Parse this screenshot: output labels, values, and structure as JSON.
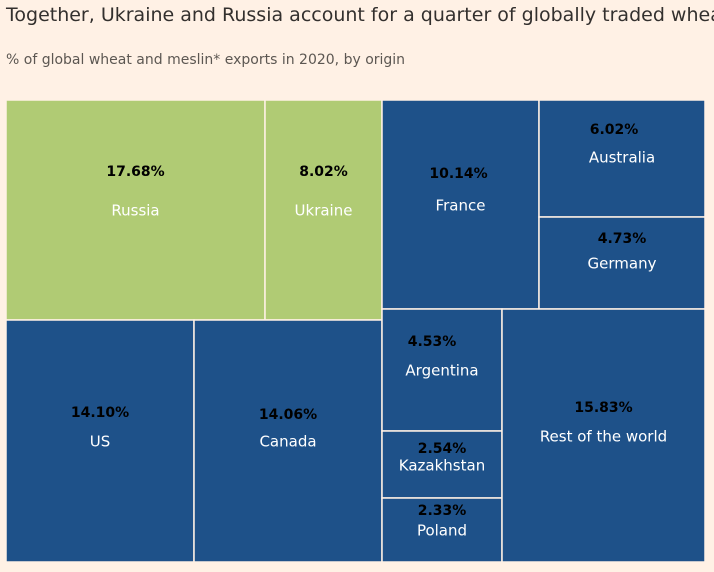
{
  "title": "Together, Ukraine and Russia account for a quarter of globally traded wheat",
  "subtitle": "% of global wheat and meslin* exports in 2020, by origin",
  "colors": {
    "highlight": "#b0cb74",
    "other": "#1e5189",
    "background": "#fff1e5"
  },
  "chart_data": {
    "type": "treemap",
    "title": "Together, Ukraine and Russia account for a quarter of globally traded wheat",
    "subtitle": "% of global wheat and meslin* exports in 2020, by origin",
    "unit": "%",
    "items": [
      {
        "name": "Russia",
        "value": 17.68,
        "value_label": "17.68%",
        "group": "highlight"
      },
      {
        "name": "Ukraine",
        "value": 8.02,
        "value_label": "8.02%",
        "group": "highlight"
      },
      {
        "name": "France",
        "value": 10.14,
        "value_label": "10.14%",
        "group": "other"
      },
      {
        "name": "Australia",
        "value": 6.02,
        "value_label": "6.02%",
        "group": "other"
      },
      {
        "name": "Germany",
        "value": 4.73,
        "value_label": "4.73%",
        "group": "other"
      },
      {
        "name": "US",
        "value": 14.1,
        "value_label": "14.10%",
        "group": "other"
      },
      {
        "name": "Canada",
        "value": 14.06,
        "value_label": "14.06%",
        "group": "other"
      },
      {
        "name": "Argentina",
        "value": 4.53,
        "value_label": "4.53%",
        "group": "other"
      },
      {
        "name": "Kazakhstan",
        "value": 2.54,
        "value_label": "2.54%",
        "group": "other"
      },
      {
        "name": "Poland",
        "value": 2.33,
        "value_label": "2.33%",
        "group": "other"
      },
      {
        "name": "Rest of the world",
        "value": 15.83,
        "value_label": "15.83%",
        "group": "other"
      }
    ]
  }
}
